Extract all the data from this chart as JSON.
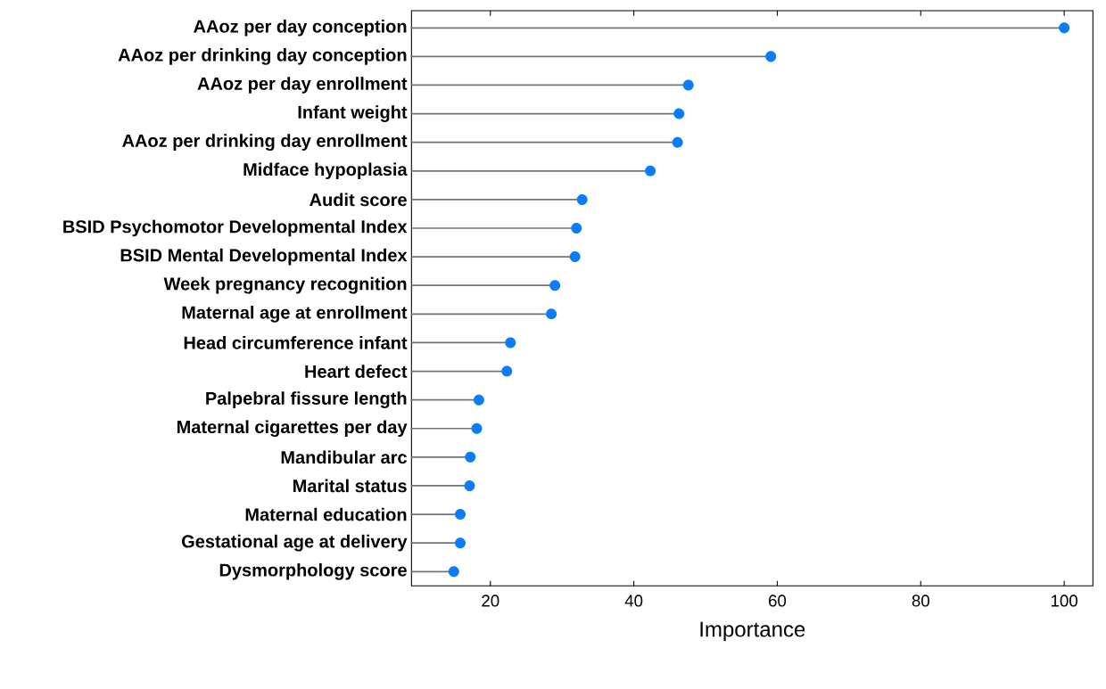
{
  "chart_data": {
    "type": "lollipop",
    "orientation": "horizontal",
    "xlabel": "Importance",
    "categories": [
      "AAoz per day conception",
      "AAoz per drinking day conception",
      "AAoz per day enrollment",
      "Infant weight",
      "AAoz per drinking day enrollment",
      "Midface hypoplasia",
      "Audit score",
      "BSID Psychomotor Developmental Index",
      "BSID Mental Developmental Index",
      "Week pregnancy recognition",
      "Maternal age at enrollment",
      "Head circumference infant",
      "Heart defect",
      "Palpebral fissure length",
      "Maternal cigarettes per day",
      "Mandibular arc",
      "Marital status",
      "Maternal education",
      "Gestational age at delivery",
      "Dysmorphology score"
    ],
    "values": [
      100,
      59.1,
      47.6,
      46.3,
      46.1,
      42.3,
      32.8,
      32.0,
      31.8,
      29.0,
      28.5,
      22.8,
      22.3,
      18.4,
      18.1,
      17.2,
      17.1,
      15.8,
      15.8,
      14.9
    ],
    "color": "#0a7cff",
    "marker": "circle",
    "xlim": [
      9,
      104
    ],
    "xticks": [
      20,
      40,
      60,
      80,
      100
    ]
  }
}
